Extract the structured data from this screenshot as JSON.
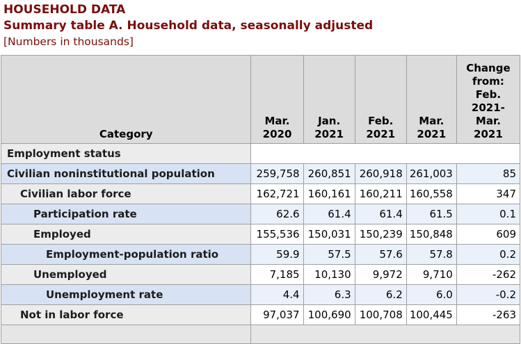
{
  "colors": {
    "title_maroon": "#7b0c0c",
    "header_bg": "#dcdcdc",
    "row_blue_category_bg": "#d7e3f4",
    "row_blue_value_bg": "#eaf1fa",
    "row_gray_category_bg": "#ececec",
    "border_gray": "#9f9f9f"
  },
  "header_block": {
    "kicker": "HOUSEHOLD DATA",
    "title": "Summary table A. Household data, seasonally adjusted",
    "unit_note": "[Numbers in thousands]"
  },
  "table": {
    "category_header": "Category",
    "column_headers": [
      "Mar.\n2020",
      "Jan.\n2021",
      "Feb.\n2021",
      "Mar.\n2021",
      "Change\nfrom:\nFeb.\n2021-\nMar.\n2021"
    ],
    "section_row": {
      "label": "Employment status"
    },
    "rows": [
      {
        "label": "Civilian noninstitutional population",
        "values": [
          "259,758",
          "260,851",
          "260,918",
          "261,003",
          "85"
        ]
      },
      {
        "label": "Civilian labor force",
        "values": [
          "162,721",
          "160,161",
          "160,211",
          "160,558",
          "347"
        ]
      },
      {
        "label": "Participation rate",
        "values": [
          "62.6",
          "61.4",
          "61.4",
          "61.5",
          "0.1"
        ]
      },
      {
        "label": "Employed",
        "values": [
          "155,536",
          "150,031",
          "150,239",
          "150,848",
          "609"
        ]
      },
      {
        "label": "Employment-population ratio",
        "values": [
          "59.9",
          "57.5",
          "57.6",
          "57.8",
          "0.2"
        ]
      },
      {
        "label": "Unemployed",
        "values": [
          "7,185",
          "10,130",
          "9,972",
          "9,710",
          "-262"
        ]
      },
      {
        "label": "Unemployment rate",
        "values": [
          "4.4",
          "6.3",
          "6.2",
          "6.0",
          "-0.2"
        ]
      },
      {
        "label": "Not in labor force",
        "values": [
          "97,037",
          "100,690",
          "100,708",
          "100,445",
          "-263"
        ]
      }
    ]
  }
}
